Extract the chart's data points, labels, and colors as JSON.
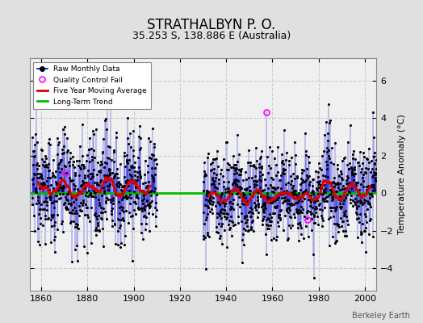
{
  "title": "STRATHALBYN P. O.",
  "subtitle": "35.253 S, 138.886 E (Australia)",
  "ylabel": "Temperature Anomaly (°C)",
  "xlim": [
    1855,
    2005
  ],
  "ylim": [
    -5.2,
    7.2
  ],
  "yticks": [
    -4,
    -2,
    0,
    2,
    4,
    6
  ],
  "xticks": [
    1860,
    1880,
    1900,
    1920,
    1940,
    1960,
    1980,
    2000
  ],
  "bg_color": "#e0e0e0",
  "plot_bg_color": "#f0f0f0",
  "line_color": "#0000dd",
  "dot_color": "#000000",
  "ma_color": "#dd0000",
  "trend_color": "#00bb00",
  "qc_color": "#ff00ff",
  "credit": "Berkeley Earth",
  "seed": 12345,
  "title_fontsize": 12,
  "subtitle_fontsize": 9
}
